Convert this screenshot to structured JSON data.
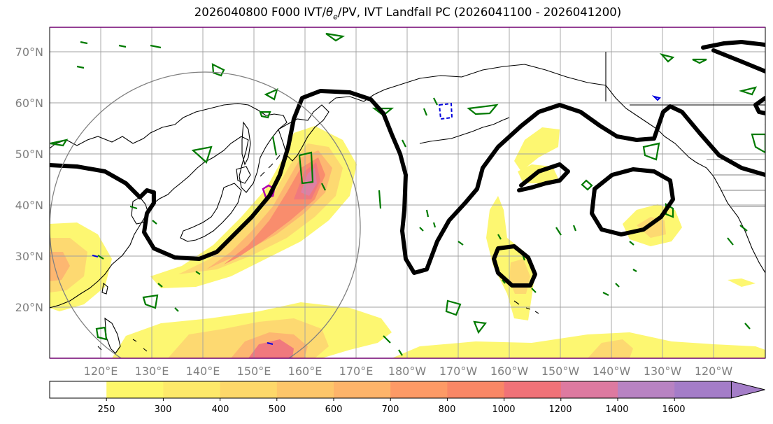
{
  "title": {
    "prefix": "2026040800 F000 IVT/",
    "theta_symbol": "θ",
    "theta_sub": "e",
    "suffix": "/PV, IVT Landfall PC (2026041100 - 2026041200)"
  },
  "lat_labels": [
    "70°N",
    "60°N",
    "50°N",
    "40°N",
    "30°N",
    "20°N"
  ],
  "lon_labels": [
    "120°E",
    "130°E",
    "140°E",
    "150°E",
    "160°E",
    "170°E",
    "180°W",
    "170°W",
    "160°W",
    "150°W",
    "140°W",
    "130°W",
    "120°W"
  ],
  "colorbar": {
    "levels": [
      "250",
      "300",
      "400",
      "500",
      "600",
      "700",
      "800",
      "1000",
      "1200",
      "1400",
      "1600"
    ],
    "colors": [
      "#ffffff",
      "#fdf76a",
      "#fde96a",
      "#fdd86a",
      "#fdc66a",
      "#fdb46a",
      "#fd9a66",
      "#f98766",
      "#f07278",
      "#dd7aa0",
      "#b883c2",
      "#a47dc8"
    ]
  },
  "contour_colors": {
    "theta_e": "#000000",
    "pv_positive": "#007a00",
    "pv_negative": "#0000dd",
    "landfall_marker": "#b000b0",
    "pc_circle": "#808080"
  }
}
